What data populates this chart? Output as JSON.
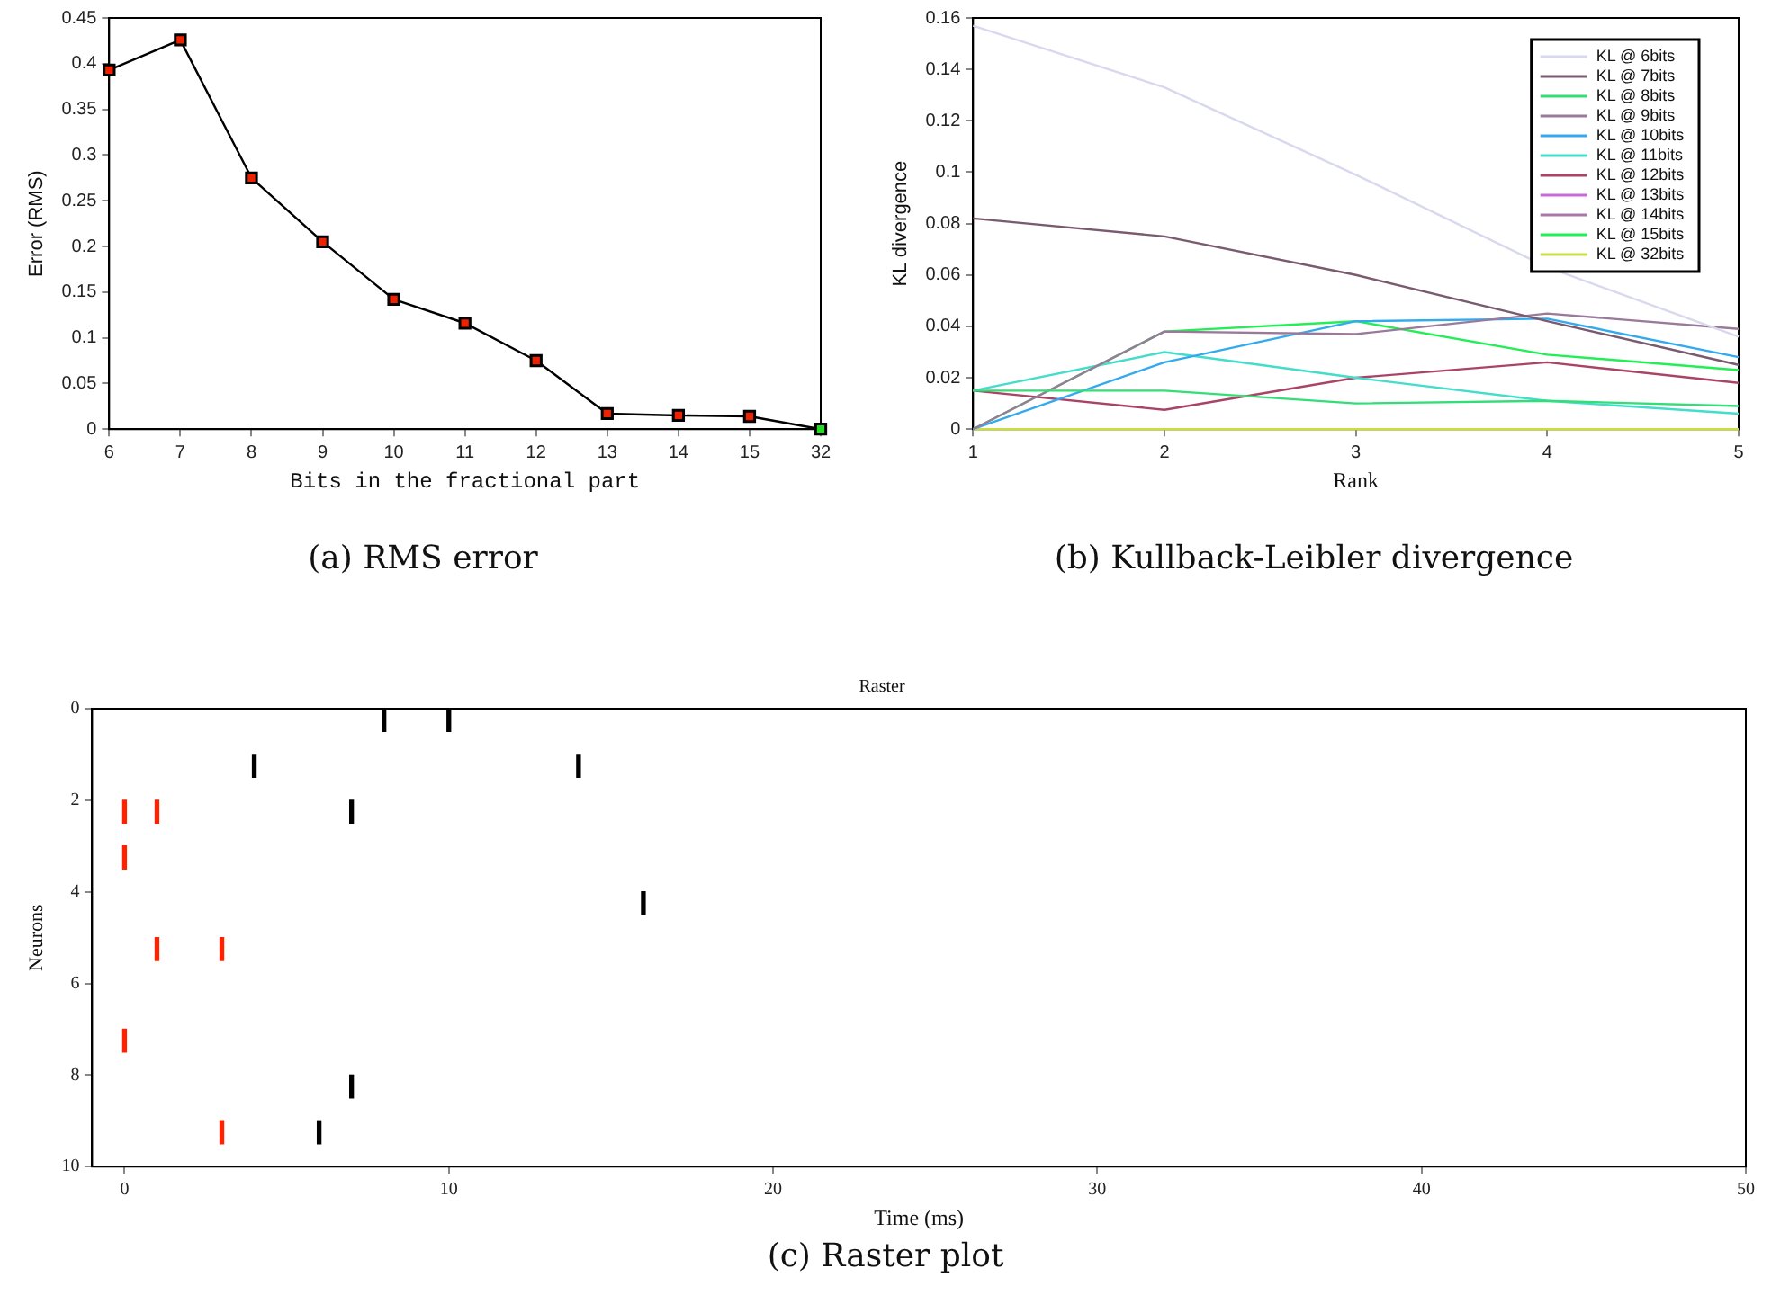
{
  "chart_data": [
    {
      "type": "line",
      "xlabel": "Bits in the fractional part",
      "ylabel": "Error (RMS)",
      "annotations": [
        "(a) RMS error"
      ],
      "categories": [
        "6",
        "7",
        "8",
        "9",
        "10",
        "11",
        "12",
        "13",
        "14",
        "15",
        "32"
      ],
      "values": [
        0.393,
        0.426,
        0.275,
        0.205,
        0.142,
        0.116,
        0.075,
        0.017,
        0.015,
        0.014,
        0
      ],
      "color": "#000000",
      "colors": [
        "#ee2200",
        "#ee2200",
        "#ee2200",
        "#ee2200",
        "#ee2200",
        "#ee2200",
        "#ee2200",
        "#ee2200",
        "#ee2200",
        "#ee2200",
        "#22dd22"
      ],
      "marker": "square",
      "ylim": [
        0,
        0.45
      ],
      "yticks": [
        0,
        0.05,
        0.1,
        0.15,
        0.2,
        0.25,
        0.3,
        0.35,
        0.4,
        0.45
      ],
      "grid": false
    },
    {
      "type": "line",
      "xlabel": "Rank",
      "ylabel": "KL divergence",
      "annotations": [
        "(b) Kullback-Leibler divergence"
      ],
      "x": [
        1,
        2,
        3,
        4,
        5
      ],
      "xlim": [
        1,
        5
      ],
      "xticks": [
        1,
        2,
        3,
        4,
        5
      ],
      "ylim": [
        0,
        0.16
      ],
      "yticks": [
        0,
        0.02,
        0.04,
        0.06,
        0.08,
        0.1,
        0.12,
        0.14,
        0.16
      ],
      "grid": false,
      "legend": "top right",
      "series": [
        {
          "name": "KL @ 6bits",
          "color": "#d8d8ee",
          "values": [
            0.157,
            0.133,
            0.099,
            0.063,
            0.036
          ]
        },
        {
          "name": "KL @ 7bits",
          "color": "#7a5a6e",
          "values": [
            0.082,
            0.075,
            0.06,
            0.042,
            0.025
          ]
        },
        {
          "name": "KL @ 8bits",
          "color": "#33dd77",
          "values": [
            0.015,
            0.015,
            0.01,
            0.011,
            0.009
          ]
        },
        {
          "name": "KL @ 9bits",
          "color": "#9a7a9a",
          "values": [
            0,
            0.038,
            0.037,
            0.045,
            0.039
          ]
        },
        {
          "name": "KL @ 10bits",
          "color": "#33aaee",
          "values": [
            0,
            0.026,
            0.042,
            0.043,
            0.028
          ]
        },
        {
          "name": "KL @ 11bits",
          "color": "#44ddcc",
          "values": [
            0.015,
            0.03,
            0.02,
            0.011,
            0.006
          ]
        },
        {
          "name": "KL @ 12bits",
          "color": "#aa4466",
          "values": [
            0.015,
            0.0075,
            0.02,
            0.026,
            0.018
          ]
        },
        {
          "name": "KL @ 13bits",
          "color": "#cc66dd",
          "values": [
            null,
            null,
            null,
            null,
            null
          ]
        },
        {
          "name": "KL @ 14bits",
          "color": "#aa77aa",
          "values": [
            null,
            null,
            null,
            null,
            null
          ]
        },
        {
          "name": "KL @ 15bits",
          "color": "#22ee55",
          "values": [
            0,
            0.038,
            0.042,
            0.029,
            0.023
          ]
        },
        {
          "name": "KL @ 32bits",
          "color": "#ccdd44",
          "values": [
            0,
            0,
            0,
            0,
            0
          ]
        }
      ]
    },
    {
      "type": "bar",
      "title": "Raster",
      "xlabel": "Time (ms)",
      "ylabel": "Neurons",
      "annotations": [
        "(c) Raster plot"
      ],
      "xlim": [
        -1,
        50
      ],
      "xticks": [
        0,
        10,
        20,
        30,
        40,
        50
      ],
      "ylim": [
        10,
        0
      ],
      "yticks": [
        0,
        2,
        4,
        6,
        8,
        10
      ],
      "grid": false,
      "series": [
        {
          "color": "#000000",
          "x": [
            4,
            6,
            7,
            8,
            10,
            14,
            16
          ],
          "base": [
            1,
            9,
            2,
            0,
            0,
            1,
            4
          ],
          "values": [
            0.5,
            0.5,
            0.5,
            0.5,
            0.5,
            0.5,
            0.5
          ]
        },
        {
          "color": "#000000",
          "x": [
            7
          ],
          "base": [
            8
          ],
          "values": [
            0.5
          ]
        },
        {
          "color": "#ff2200",
          "x": [
            0,
            1,
            3
          ],
          "base": [
            2,
            2,
            5
          ],
          "values": [
            0.5,
            0.5,
            0.5
          ]
        },
        {
          "color": "#ff2200",
          "x": [
            0,
            1,
            3
          ],
          "base": [
            3,
            5,
            9
          ],
          "values": [
            0.5,
            0.5,
            0.5
          ]
        },
        {
          "color": "#ff2200",
          "x": [
            0
          ],
          "base": [
            7
          ],
          "values": [
            0.5
          ]
        }
      ]
    }
  ]
}
